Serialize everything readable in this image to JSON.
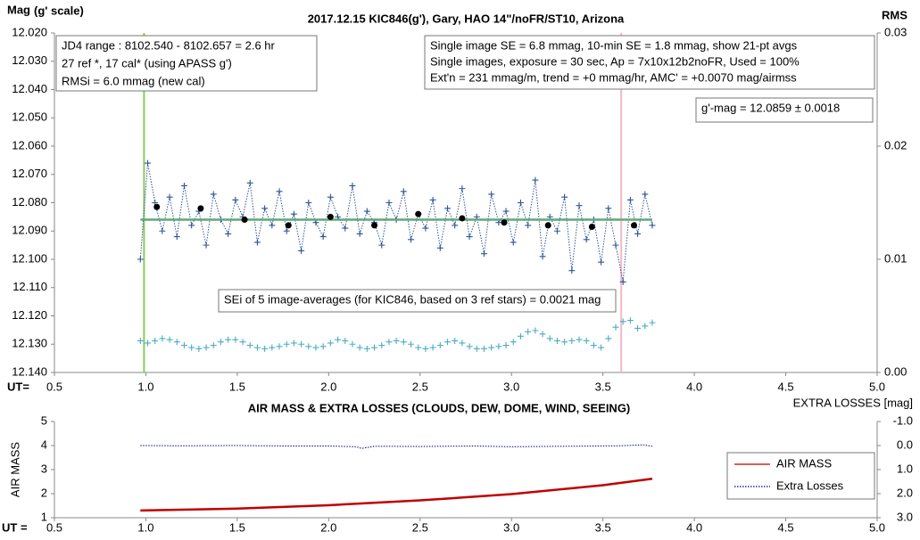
{
  "chart_data": [
    {
      "type": "line",
      "title": "2017.12.15  KIC846(g'),  Gary, HAO  14\"/noFR/ST10,  Arizona",
      "ylabel": "Mag",
      "ylabel_note": "(g' scale)",
      "y2label": "RMS",
      "xlabel": "UT=",
      "xlim": [
        0.5,
        5.0
      ],
      "xticks": [
        0.5,
        {
          "value": 1.0,
          "label": "1.0"
        },
        1.5,
        {
          "value": 2.0,
          "label": "2.0"
        },
        2.5,
        {
          "value": 3.0,
          "label": "3.0"
        },
        3.5,
        {
          "value": 4.0,
          "label": "4.0"
        },
        4.5,
        {
          "value": 5.0,
          "label": "5.0"
        }
      ],
      "ylim": [
        12.14,
        12.02
      ],
      "yticks": [
        {
          "value": 12.02,
          "label": "12.020"
        },
        {
          "value": 12.03,
          "label": "12.030"
        },
        {
          "value": 12.04,
          "label": "12.040"
        },
        {
          "value": 12.05,
          "label": "12.050"
        },
        {
          "value": 12.06,
          "label": "12.060"
        },
        {
          "value": 12.07,
          "label": "12.070"
        },
        {
          "value": 12.08,
          "label": "12.080"
        },
        {
          "value": 12.09,
          "label": "12.090"
        },
        {
          "value": 12.1,
          "label": "12.100"
        },
        {
          "value": 12.11,
          "label": "12.110"
        },
        {
          "value": 12.12,
          "label": "12.120"
        },
        {
          "value": 12.13,
          "label": "12.130"
        },
        {
          "value": 12.14,
          "label": "12.140"
        }
      ],
      "y2lim": [
        0,
        0.03
      ],
      "y2ticks": [
        {
          "value": 0,
          "label": "0.00"
        },
        {
          "value": 0.01,
          "label": "0.01"
        },
        {
          "value": 0.02,
          "label": "0.02"
        },
        {
          "value": 0.03,
          "label": "0.03"
        }
      ],
      "vlines": [
        {
          "value": 0.99,
          "color": "#8cc860"
        },
        {
          "value": 3.6,
          "color": "#f4b8c4"
        }
      ],
      "annotations": [
        [
          "JD4 range : 8102.540 - 8102.657 = 2.6  hr",
          "27 ref *, 17 cal* (using APASS g')",
          "RMSi = 6.0 mmag (new cal)"
        ],
        [
          "Single image SE = 6.8 mmag, 10-min SE = 1.8 mmag, show  21-pt avgs",
          "Single images, exposure = 30 sec, Ap = 7x10x12b2noFR,  Used = 100%",
          "Ext'n = 231 mmag/m, trend =  +0 mmag/hr, AMC' = +0.0070 mag/airmss"
        ],
        [
          "g'-mag = 12.0859 ± 0.0018"
        ],
        [
          "SEi of 5 image-averages (for KIC846, based on 3 ref stars) = 0.0021  mag"
        ]
      ],
      "series": [
        {
          "color": "#2f5597",
          "line": "dotted",
          "marker": "plus",
          "x": [
            0.97,
            1.01,
            1.05,
            1.09,
            1.13,
            1.17,
            1.21,
            1.25,
            1.29,
            1.33,
            1.37,
            1.41,
            1.45,
            1.49,
            1.53,
            1.57,
            1.61,
            1.65,
            1.69,
            1.73,
            1.77,
            1.81,
            1.85,
            1.89,
            1.93,
            1.97,
            2.01,
            2.05,
            2.09,
            2.13,
            2.17,
            2.21,
            2.25,
            2.29,
            2.33,
            2.37,
            2.41,
            2.45,
            2.49,
            2.53,
            2.57,
            2.61,
            2.65,
            2.69,
            2.73,
            2.77,
            2.81,
            2.85,
            2.89,
            2.93,
            2.97,
            3.01,
            3.05,
            3.09,
            3.13,
            3.17,
            3.21,
            3.25,
            3.29,
            3.33,
            3.37,
            3.41,
            3.45,
            3.49,
            3.53,
            3.57,
            3.61,
            3.65,
            3.69,
            3.73,
            3.77
          ],
          "values": [
            12.1,
            12.066,
            12.08,
            12.09,
            12.078,
            12.092,
            12.074,
            12.088,
            12.083,
            12.095,
            12.077,
            12.086,
            12.091,
            12.079,
            12.085,
            12.073,
            12.094,
            12.082,
            12.088,
            12.076,
            12.09,
            12.084,
            12.097,
            12.08,
            12.087,
            12.092,
            12.078,
            12.085,
            12.089,
            12.074,
            12.091,
            12.083,
            12.087,
            12.095,
            12.08,
            12.086,
            12.076,
            12.093,
            12.084,
            12.089,
            12.079,
            12.096,
            12.082,
            12.088,
            12.075,
            12.092,
            12.085,
            12.098,
            12.077,
            12.087,
            12.083,
            12.094,
            12.08,
            12.088,
            12.072,
            12.099,
            12.085,
            12.09,
            12.078,
            12.104,
            12.081,
            12.093,
            12.086,
            12.101,
            12.082,
            12.095,
            12.108,
            12.079,
            12.091,
            12.077,
            12.088
          ]
        },
        {
          "color": "#4bacc6",
          "line": "none",
          "marker": "plus",
          "axis": "y2",
          "x": [
            0.97,
            1.01,
            1.05,
            1.09,
            1.13,
            1.17,
            1.21,
            1.25,
            1.29,
            1.33,
            1.37,
            1.41,
            1.45,
            1.49,
            1.53,
            1.57,
            1.61,
            1.65,
            1.69,
            1.73,
            1.77,
            1.81,
            1.85,
            1.89,
            1.93,
            1.97,
            2.01,
            2.05,
            2.09,
            2.13,
            2.17,
            2.21,
            2.25,
            2.29,
            2.33,
            2.37,
            2.41,
            2.45,
            2.49,
            2.53,
            2.57,
            2.61,
            2.65,
            2.69,
            2.73,
            2.77,
            2.81,
            2.85,
            2.89,
            2.93,
            2.97,
            3.01,
            3.05,
            3.09,
            3.13,
            3.17,
            3.21,
            3.25,
            3.29,
            3.33,
            3.37,
            3.41,
            3.45,
            3.49,
            3.53,
            3.57,
            3.61,
            3.65,
            3.69,
            3.73,
            3.77
          ],
          "values": [
            0.0028,
            0.0026,
            0.0028,
            0.003,
            0.0029,
            0.0027,
            0.0024,
            0.0022,
            0.0021,
            0.0022,
            0.0024,
            0.0027,
            0.0029,
            0.0029,
            0.0027,
            0.0024,
            0.0022,
            0.0021,
            0.0022,
            0.0023,
            0.0025,
            0.0026,
            0.0025,
            0.0023,
            0.0022,
            0.0023,
            0.0026,
            0.0029,
            0.0028,
            0.0025,
            0.0022,
            0.0021,
            0.0022,
            0.0024,
            0.0027,
            0.0028,
            0.0027,
            0.0025,
            0.0022,
            0.0021,
            0.0022,
            0.0024,
            0.0027,
            0.0028,
            0.0026,
            0.0023,
            0.0021,
            0.0021,
            0.0022,
            0.0023,
            0.0024,
            0.0027,
            0.0032,
            0.0036,
            0.0037,
            0.0034,
            0.003,
            0.0028,
            0.0027,
            0.0028,
            0.0029,
            0.0028,
            0.0024,
            0.0022,
            0.003,
            0.004,
            0.0045,
            0.0046,
            0.0039,
            0.0041,
            0.0044
          ]
        },
        {
          "color": "#5fa878",
          "line": "solid",
          "marker": "none",
          "x": [
            0.97,
            3.77
          ],
          "values": [
            12.086,
            12.086
          ]
        },
        {
          "color": "#000000",
          "line": "none",
          "marker": "dot",
          "x": [
            1.06,
            1.3,
            1.54,
            1.78,
            2.01,
            2.25,
            2.49,
            2.73,
            2.96,
            3.2,
            3.44,
            3.67
          ],
          "values": [
            12.0815,
            12.082,
            12.086,
            12.088,
            12.085,
            12.088,
            12.084,
            12.0855,
            12.087,
            12.088,
            12.0885,
            12.088
          ]
        }
      ]
    },
    {
      "type": "line",
      "title": "AIR MASS & EXTRA LOSSES (CLOUDS, DEW, DOME, WIND, SEEING)",
      "ylabel": "AIR MASS",
      "y2label": "EXTRA LOSSES [mag]",
      "xlabel": "UT =",
      "xlim": [
        0.5,
        5.0
      ],
      "xticks": [
        0.5,
        {
          "value": 1.0,
          "label": "1.0"
        },
        1.5,
        {
          "value": 2.0,
          "label": "2.0"
        },
        2.5,
        {
          "value": 3.0,
          "label": "3.0"
        },
        3.5,
        {
          "value": 4.0,
          "label": "4.0"
        },
        4.5,
        {
          "value": 5.0,
          "label": "5.0"
        }
      ],
      "ylim": [
        1,
        5
      ],
      "yticks": [
        1,
        2,
        3,
        4,
        5
      ],
      "y2lim": [
        3.0,
        -1.0
      ],
      "y2ticks": [
        {
          "value": -1.0,
          "label": "-1.0"
        },
        {
          "value": 0.0,
          "label": "0.0"
        },
        {
          "value": 1.0,
          "label": "1.0"
        },
        {
          "value": 2.0,
          "label": "2.0"
        },
        {
          "value": 3.0,
          "label": "3.0"
        }
      ],
      "legend": "right",
      "series": [
        {
          "name": "AIR MASS",
          "color": "#c00000",
          "line": "solid",
          "marker": "none",
          "x": [
            0.97,
            1.5,
            2.0,
            2.5,
            3.0,
            3.5,
            3.77
          ],
          "values": [
            1.3,
            1.38,
            1.52,
            1.72,
            1.98,
            2.35,
            2.62
          ]
        },
        {
          "name": "Extra Losses",
          "color": "#00008b",
          "line": "dotted",
          "marker": "none",
          "axis": "y2",
          "x": [
            0.97,
            1.2,
            1.5,
            1.8,
            2.0,
            2.15,
            2.18,
            2.25,
            2.5,
            2.8,
            3.0,
            3.3,
            3.6,
            3.72,
            3.77
          ],
          "values": [
            0.0,
            0.01,
            0.0,
            0.02,
            0.02,
            0.05,
            0.12,
            0.03,
            0.04,
            0.02,
            0.05,
            0.03,
            0.01,
            -0.03,
            0.03
          ]
        }
      ]
    }
  ]
}
